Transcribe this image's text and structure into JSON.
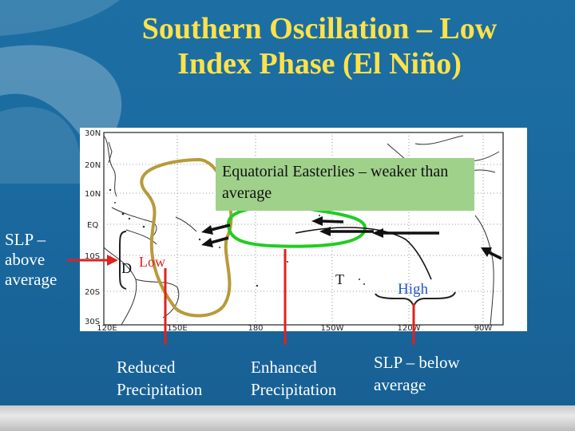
{
  "title": {
    "line1": "Southern Oscillation – Low",
    "line2": "Index Phase (El Niño)"
  },
  "callout": {
    "easterlies": "Equatorial Easterlies – weaker than average"
  },
  "labels": {
    "slp_above": [
      "SLP –",
      "above",
      "average"
    ],
    "slp_below": [
      "SLP – below",
      "average"
    ],
    "reduced_precip": [
      "Reduced",
      "Precipitation"
    ],
    "enhanced_precip": [
      "Enhanced",
      "Precipitation"
    ]
  },
  "map_labels": {
    "low": "Low",
    "high": "High",
    "d": "D",
    "t": "T"
  },
  "lat_ticks": [
    "30N",
    "20N",
    "10N",
    "EQ",
    "10S",
    "20S",
    "30S"
  ],
  "lon_ticks": [
    "120E",
    "150E",
    "180",
    "150W",
    "120W",
    "90W"
  ],
  "colors": {
    "title": "#ffe24a",
    "background": "#1a6aa0",
    "easterlies_box": "#9fd18a",
    "green_contour": "#22cc22",
    "olive_contour": "#b89a3a",
    "red_arrow": "#e2201c",
    "low_text": "#e2201c",
    "high_text": "#2456c8"
  }
}
